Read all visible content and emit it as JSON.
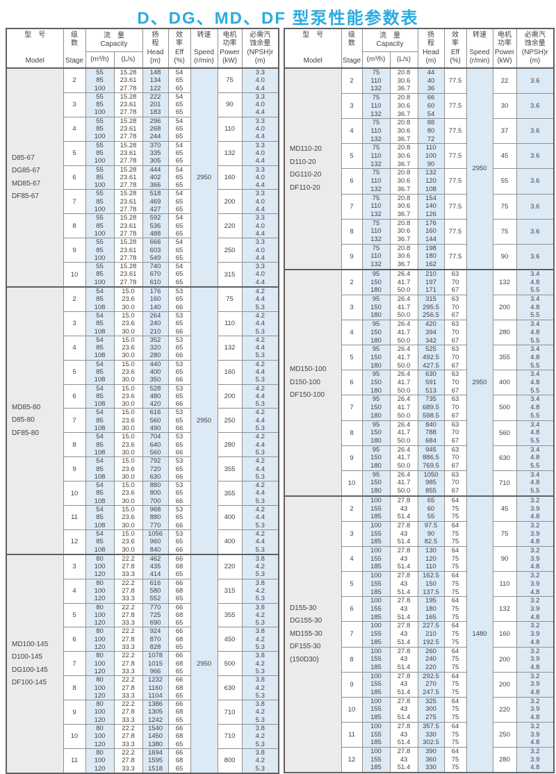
{
  "title": "D、DG、MD、DF 型泵性能参数表",
  "colors": {
    "title_blue": "#29abe2",
    "shaded_column": "#dceaf6",
    "model_column": "#ebebeb",
    "border": "#8f8f8f",
    "border_dark": "#5f5f5f",
    "text": "#404040"
  },
  "header": {
    "model_zh": "型　号",
    "model_en": "Model",
    "stage_zh1": "级",
    "stage_zh2": "数",
    "stage_en": "Stage",
    "capacity_zh": "流　量",
    "capacity_en": "Capacity",
    "capacity_unit1": "(m³/h)",
    "capacity_unit2": "(L/s)",
    "head_zh1": "扬",
    "head_zh2": "程",
    "head_en": "Head",
    "head_unit": "(m)",
    "eff_zh1": "效",
    "eff_zh2": "率",
    "eff_en": "Eff",
    "eff_unit": "(%)",
    "speed_zh": "转速",
    "speed_en": "Speed",
    "speed_unit": "(r/min)",
    "power_zh1": "电机",
    "power_zh2": "功率",
    "power_en": "Power",
    "power_unit": "(kW)",
    "npsh_zh1": "必需汽",
    "npsh_zh2": "蚀余量",
    "npsh_en": "(NPSH)r",
    "npsh_unit": "(m)"
  },
  "tables": [
    {
      "side": "left",
      "groups": [
        {
          "models": [
            "D85-67",
            "DG85-67",
            "MD85-67",
            "DF85-67"
          ],
          "speed": "2950",
          "flows_m3h": [
            "55",
            "85",
            "100"
          ],
          "flows_ls": [
            "15.28",
            "23.61",
            "27.78"
          ],
          "eff": [
            "54",
            "65",
            "65"
          ],
          "eff_merged": null,
          "npsh": [
            "3.3",
            "4.0",
            "4.4"
          ],
          "npsh_merged": null,
          "rows": [
            {
              "stage": "2",
              "head": [
                "148",
                "134",
                "122"
              ],
              "power": "75"
            },
            {
              "stage": "3",
              "head": [
                "222",
                "201",
                "183"
              ],
              "power": "90"
            },
            {
              "stage": "4",
              "head": [
                "296",
                "268",
                "244"
              ],
              "power": "110"
            },
            {
              "stage": "5",
              "head": [
                "370",
                "335",
                "305"
              ],
              "power": "132"
            },
            {
              "stage": "6",
              "head": [
                "444",
                "402",
                "366"
              ],
              "power": "160"
            },
            {
              "stage": "7",
              "head": [
                "518",
                "469",
                "427"
              ],
              "power": "200"
            },
            {
              "stage": "8",
              "head": [
                "592",
                "536",
                "488"
              ],
              "power": "220"
            },
            {
              "stage": "9",
              "head": [
                "666",
                "603",
                "549"
              ],
              "power": "250"
            },
            {
              "stage": "10",
              "head": [
                "740",
                "670",
                "610"
              ],
              "power": "315"
            }
          ]
        },
        {
          "models": [
            "MD85-80",
            "D85-80",
            "DF85-80"
          ],
          "speed": "2950",
          "flows_m3h": [
            "54",
            "85",
            "108"
          ],
          "flows_ls": [
            "15.0",
            "23.6",
            "30.0"
          ],
          "eff": [
            "53",
            "65",
            "66"
          ],
          "eff_merged": null,
          "npsh": [
            "4.2",
            "4.4",
            "5.3"
          ],
          "npsh_merged": null,
          "rows": [
            {
              "stage": "2",
              "head": [
                "176",
                "160",
                "140"
              ],
              "power": "75"
            },
            {
              "stage": "3",
              "head": [
                "264",
                "240",
                "210"
              ],
              "power": "110"
            },
            {
              "stage": "4",
              "head": [
                "352",
                "320",
                "280"
              ],
              "power": "132"
            },
            {
              "stage": "5",
              "head": [
                "440",
                "400",
                "350"
              ],
              "power": "160"
            },
            {
              "stage": "6",
              "head": [
                "528",
                "480",
                "420"
              ],
              "power": "200"
            },
            {
              "stage": "7",
              "head": [
                "616",
                "560",
                "490"
              ],
              "power": "250"
            },
            {
              "stage": "8",
              "head": [
                "704",
                "640",
                "560"
              ],
              "power": "280"
            },
            {
              "stage": "9",
              "head": [
                "792",
                "720",
                "630"
              ],
              "power": "355"
            },
            {
              "stage": "10",
              "head": [
                "880",
                "800",
                "700"
              ],
              "power": "355"
            },
            {
              "stage": "11",
              "head": [
                "968",
                "880",
                "770"
              ],
              "power": "400"
            },
            {
              "stage": "12",
              "head": [
                "1056",
                "960",
                "840"
              ],
              "power": "400"
            }
          ]
        },
        {
          "models": [
            "MD100-145",
            "D100-145",
            "DG100-145",
            "DF100-145"
          ],
          "speed": "2950",
          "flows_m3h": [
            "80",
            "100",
            "120"
          ],
          "flows_ls": [
            "22.2",
            "27.8",
            "33.3"
          ],
          "eff": [
            "66",
            "68",
            "65"
          ],
          "eff_merged": null,
          "npsh": [
            "3.8",
            "4.2",
            "5.3"
          ],
          "npsh_merged": null,
          "rows": [
            {
              "stage": "3",
              "head": [
                "462",
                "435",
                "414"
              ],
              "power": "220"
            },
            {
              "stage": "4",
              "head": [
                "616",
                "580",
                "552"
              ],
              "power": "315"
            },
            {
              "stage": "5",
              "head": [
                "770",
                "725",
                "690"
              ],
              "power": "355"
            },
            {
              "stage": "6",
              "head": [
                "924",
                "870",
                "828"
              ],
              "power": "450"
            },
            {
              "stage": "7",
              "head": [
                "1078",
                "1015",
                "966"
              ],
              "power": "500"
            },
            {
              "stage": "8",
              "head": [
                "1232",
                "1160",
                "1104"
              ],
              "power": "630"
            },
            {
              "stage": "9",
              "head": [
                "1386",
                "1305",
                "1242"
              ],
              "power": "710"
            },
            {
              "stage": "10",
              "head": [
                "1540",
                "1450",
                "1380"
              ],
              "power": "710"
            },
            {
              "stage": "11",
              "head": [
                "1694",
                "1595",
                "1518"
              ],
              "power": "800"
            }
          ]
        }
      ]
    },
    {
      "side": "right",
      "groups": [
        {
          "models": [
            "MD110-20",
            "D110-20",
            "DG110-20",
            "DF110-20"
          ],
          "speed": "2950",
          "flows_m3h": [
            "75",
            "110",
            "132"
          ],
          "flows_ls": [
            "20.8",
            "30.6",
            "36.7"
          ],
          "eff": null,
          "eff_merged": "77.5",
          "npsh": null,
          "npsh_merged": "3.6",
          "rows": [
            {
              "stage": "2",
              "head": [
                "44",
                "40",
                "36"
              ],
              "power": "22"
            },
            {
              "stage": "3",
              "head": [
                "66",
                "60",
                "54"
              ],
              "power": "30"
            },
            {
              "stage": "4",
              "head": [
                "88",
                "80",
                "72"
              ],
              "power": "37"
            },
            {
              "stage": "5",
              "head": [
                "110",
                "100",
                "90"
              ],
              "power": "45"
            },
            {
              "stage": "6",
              "head": [
                "132",
                "120",
                "108"
              ],
              "power": "55"
            },
            {
              "stage": "7",
              "head": [
                "154",
                "140",
                "126"
              ],
              "power": "75"
            },
            {
              "stage": "8",
              "head": [
                "176",
                "160",
                "144"
              ],
              "power": "75"
            },
            {
              "stage": "9",
              "head": [
                "198",
                "180",
                "162"
              ],
              "power": "90"
            }
          ]
        },
        {
          "models": [
            "MD150-100",
            "D150-100",
            "DF150-100"
          ],
          "speed": "2950",
          "flows_m3h": [
            "95",
            "150",
            "180"
          ],
          "flows_ls": [
            "26.4",
            "41.7",
            "50.0"
          ],
          "eff": [
            "63",
            "70",
            "67"
          ],
          "eff_merged": null,
          "npsh": [
            "3.4",
            "4.8",
            "5.5"
          ],
          "npsh_merged": null,
          "rows": [
            {
              "stage": "2",
              "head": [
                "210",
                "197",
                "171"
              ],
              "power": "132"
            },
            {
              "stage": "3",
              "head": [
                "315",
                "295.5",
                "256.5"
              ],
              "power": "200"
            },
            {
              "stage": "4",
              "head": [
                "420",
                "394",
                "342"
              ],
              "power": "280"
            },
            {
              "stage": "5",
              "head": [
                "525",
                "492.5",
                "427.5"
              ],
              "power": "355"
            },
            {
              "stage": "6",
              "head": [
                "630",
                "591",
                "513"
              ],
              "power": "400"
            },
            {
              "stage": "7",
              "head": [
                "735",
                "689.5",
                "598.5"
              ],
              "power": "500"
            },
            {
              "stage": "8",
              "head": [
                "840",
                "788",
                "684"
              ],
              "power": "560"
            },
            {
              "stage": "9",
              "head": [
                "945",
                "886.5",
                "769.5"
              ],
              "power": "630"
            },
            {
              "stage": "10",
              "head": [
                "1050",
                "985",
                "855"
              ],
              "power": "710"
            }
          ]
        },
        {
          "models": [
            "D155-30",
            "DG155-30",
            "MD155-30",
            "DF155-30",
            "(150D30)"
          ],
          "speed": "1480",
          "flows_m3h": [
            "100",
            "155",
            "185"
          ],
          "flows_ls": [
            "27.8",
            "43",
            "51.4"
          ],
          "eff": [
            "64",
            "75",
            "75"
          ],
          "eff_merged": null,
          "npsh": [
            "3.2",
            "3.9",
            "4.8"
          ],
          "npsh_merged": null,
          "rows": [
            {
              "stage": "2",
              "head": [
                "65",
                "60",
                "55"
              ],
              "power": "45"
            },
            {
              "stage": "3",
              "head": [
                "97.5",
                "90",
                "82.5"
              ],
              "power": "75"
            },
            {
              "stage": "4",
              "head": [
                "130",
                "120",
                "110"
              ],
              "power": "90"
            },
            {
              "stage": "5",
              "head": [
                "162.5",
                "150",
                "137.5"
              ],
              "power": "110"
            },
            {
              "stage": "6",
              "head": [
                "195",
                "180",
                "165"
              ],
              "power": "132"
            },
            {
              "stage": "7",
              "head": [
                "227.5",
                "210",
                "192.5"
              ],
              "power": "160"
            },
            {
              "stage": "8",
              "head": [
                "260",
                "240",
                "220"
              ],
              "power": "200"
            },
            {
              "stage": "9",
              "head": [
                "292.5",
                "270",
                "247.5"
              ],
              "power": "200"
            },
            {
              "stage": "10",
              "head": [
                "325",
                "300",
                "275"
              ],
              "power": "220"
            },
            {
              "stage": "11",
              "head": [
                "357.5",
                "330",
                "302.5"
              ],
              "power": "250"
            },
            {
              "stage": "12",
              "head": [
                "390",
                "360",
                "330"
              ],
              "power": "280"
            }
          ]
        }
      ]
    }
  ]
}
